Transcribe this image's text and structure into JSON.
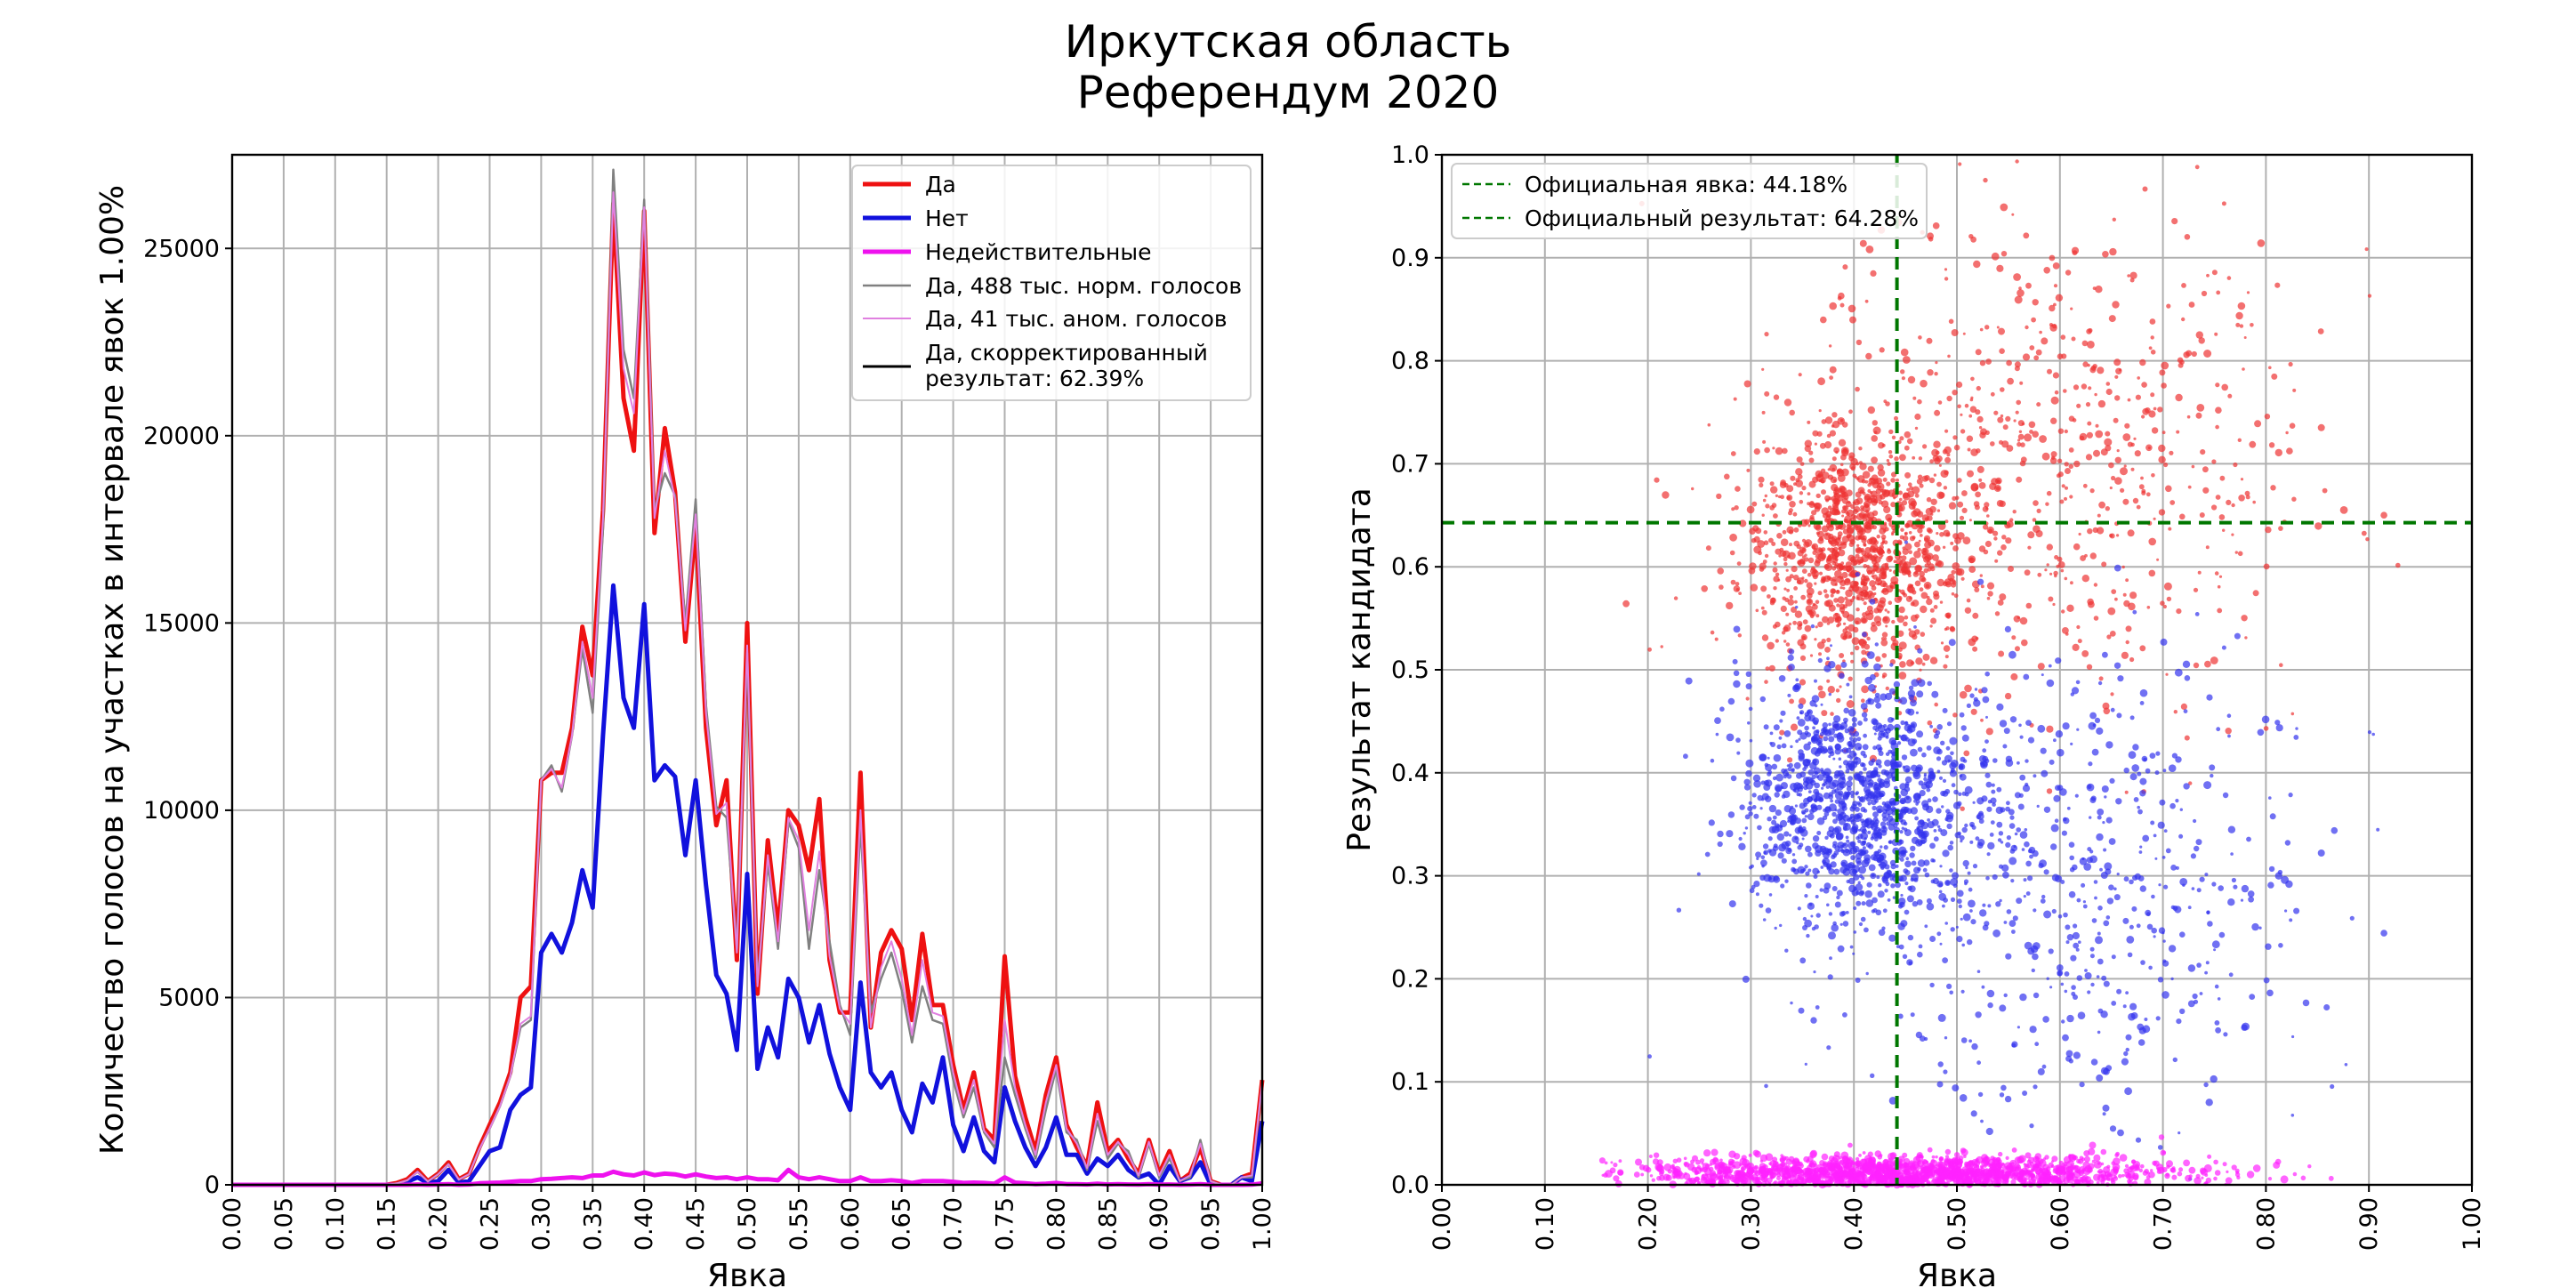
{
  "figure": {
    "title_line1": "Иркутская область",
    "title_line2": "Референдум 2020"
  },
  "chart_data": [
    {
      "type": "line",
      "xlabel": "Явка",
      "ylabel": "Количество голосов на участках в интервале явок 1.00%",
      "xlim": [
        0,
        1
      ],
      "ylim": [
        0,
        27500
      ],
      "xticks": [
        "0.00",
        "0.05",
        "0.10",
        "0.15",
        "0.20",
        "0.25",
        "0.30",
        "0.35",
        "0.40",
        "0.45",
        "0.50",
        "0.55",
        "0.60",
        "0.65",
        "0.70",
        "0.75",
        "0.80",
        "0.85",
        "0.90",
        "0.95",
        "1.00"
      ],
      "yticks": [
        "0",
        "5000",
        "10000",
        "15000",
        "20000",
        "25000"
      ],
      "grid": true,
      "legend_position": "top-right",
      "legend": [
        {
          "label": "Да",
          "color": "#ee1111"
        },
        {
          "label": "Нет",
          "color": "#1111dd"
        },
        {
          "label": "Недействительные",
          "color": "#ee11ee"
        },
        {
          "label": "Да, 488 тыс. норм. голосов",
          "color": "#808080"
        },
        {
          "label": "Да, 41 тыс. аном. голосов",
          "color": "#e080e0"
        },
        {
          "label": "Да, скорректированный",
          "label2": "результат: 62.39%",
          "color": "#000000"
        }
      ],
      "x": [
        0.0,
        0.01,
        0.02,
        0.03,
        0.04,
        0.05,
        0.06,
        0.07,
        0.08,
        0.09,
        0.1,
        0.11,
        0.12,
        0.13,
        0.14,
        0.15,
        0.16,
        0.17,
        0.18,
        0.19,
        0.2,
        0.21,
        0.22,
        0.23,
        0.24,
        0.25,
        0.26,
        0.27,
        0.28,
        0.29,
        0.3,
        0.31,
        0.32,
        0.33,
        0.34,
        0.35,
        0.36,
        0.37,
        0.38,
        0.39,
        0.4,
        0.41,
        0.42,
        0.43,
        0.44,
        0.45,
        0.46,
        0.47,
        0.48,
        0.49,
        0.5,
        0.51,
        0.52,
        0.53,
        0.54,
        0.55,
        0.56,
        0.57,
        0.58,
        0.59,
        0.6,
        0.61,
        0.62,
        0.63,
        0.64,
        0.65,
        0.66,
        0.67,
        0.68,
        0.69,
        0.7,
        0.71,
        0.72,
        0.73,
        0.74,
        0.75,
        0.76,
        0.77,
        0.78,
        0.79,
        0.8,
        0.81,
        0.82,
        0.83,
        0.84,
        0.85,
        0.86,
        0.87,
        0.88,
        0.89,
        0.9,
        0.91,
        0.92,
        0.93,
        0.94,
        0.95,
        0.96,
        0.97,
        0.98,
        0.99,
        1.0
      ],
      "series": [
        {
          "name": "Да",
          "color": "#ee1111",
          "width": 5,
          "values": [
            0,
            0,
            0,
            0,
            0,
            0,
            0,
            0,
            0,
            0,
            0,
            0,
            0,
            0,
            0,
            0,
            50,
            150,
            400,
            100,
            300,
            600,
            150,
            300,
            1000,
            1600,
            2200,
            3000,
            5000,
            5300,
            10800,
            11000,
            11000,
            12200,
            14900,
            13600,
            18000,
            26200,
            21000,
            19600,
            26000,
            17400,
            20200,
            18500,
            14500,
            17600,
            12200,
            9600,
            10800,
            6000,
            15000,
            5100,
            9200,
            6800,
            10000,
            9600,
            8400,
            10300,
            6000,
            4600,
            4600,
            11000,
            4200,
            6200,
            6800,
            6300,
            4400,
            6700,
            4800,
            4800,
            3200,
            2000,
            3000,
            1500,
            1200,
            6100,
            2900,
            1800,
            900,
            2400,
            3400,
            1600,
            1000,
            500,
            2200,
            900,
            1200,
            700,
            300,
            1200,
            300,
            900,
            100,
            300,
            1000,
            100,
            0,
            0,
            200,
            300,
            2800
          ]
        },
        {
          "name": "Нет",
          "color": "#1111dd",
          "width": 5,
          "values": [
            0,
            0,
            0,
            0,
            0,
            0,
            0,
            0,
            0,
            0,
            0,
            0,
            0,
            0,
            0,
            0,
            0,
            80,
            200,
            50,
            100,
            400,
            60,
            100,
            500,
            900,
            1000,
            2000,
            2400,
            2600,
            6200,
            6700,
            6200,
            7000,
            8400,
            7400,
            12000,
            16000,
            13000,
            12200,
            15500,
            10800,
            11200,
            10900,
            8800,
            10800,
            8000,
            5600,
            5100,
            3600,
            8300,
            3100,
            4200,
            3400,
            5500,
            5000,
            3800,
            4800,
            3500,
            2600,
            2000,
            5400,
            3000,
            2600,
            3000,
            2000,
            1400,
            2700,
            2200,
            3400,
            1600,
            900,
            1800,
            900,
            600,
            2600,
            1700,
            1000,
            500,
            1000,
            1800,
            800,
            800,
            300,
            700,
            500,
            800,
            400,
            200,
            300,
            0,
            500,
            100,
            200,
            600,
            0,
            0,
            0,
            200,
            100,
            1700
          ]
        },
        {
          "name": "Недействительные",
          "color": "#ee11ee",
          "width": 5,
          "values": [
            0,
            0,
            0,
            0,
            0,
            0,
            0,
            0,
            0,
            0,
            0,
            0,
            0,
            0,
            0,
            0,
            0,
            0,
            10,
            0,
            10,
            20,
            0,
            10,
            40,
            50,
            60,
            80,
            100,
            100,
            150,
            160,
            180,
            200,
            180,
            250,
            250,
            350,
            280,
            250,
            330,
            260,
            300,
            280,
            220,
            280,
            220,
            180,
            200,
            150,
            200,
            150,
            150,
            120,
            400,
            200,
            150,
            200,
            150,
            100,
            100,
            200,
            100,
            100,
            120,
            100,
            50,
            100,
            100,
            100,
            80,
            50,
            60,
            50,
            30,
            200,
            60,
            40,
            20,
            30,
            50,
            20,
            20,
            10,
            30,
            10,
            20,
            10,
            5,
            20,
            5,
            10,
            0,
            5,
            20,
            0,
            0,
            0,
            0,
            5,
            40
          ]
        },
        {
          "name": "Да, 488 тыс. норм. голосов",
          "color": "#808080",
          "width": 2.5,
          "values": [
            0,
            0,
            0,
            0,
            0,
            0,
            0,
            0,
            0,
            0,
            0,
            0,
            0,
            0,
            0,
            0,
            40,
            120,
            350,
            90,
            280,
            550,
            140,
            280,
            950,
            1500,
            2100,
            2900,
            4200,
            4400,
            10800,
            11200,
            10500,
            12000,
            14300,
            12600,
            17500,
            27100,
            22300,
            21000,
            26300,
            18000,
            19000,
            18400,
            15000,
            18300,
            12800,
            10100,
            9800,
            6300,
            14200,
            5400,
            8600,
            6300,
            9700,
            9000,
            6300,
            8400,
            6500,
            4800,
            4000,
            9600,
            4600,
            5500,
            6200,
            5200,
            3800,
            5300,
            4400,
            4300,
            2800,
            1800,
            2600,
            1400,
            1000,
            3400,
            2400,
            1500,
            700,
            2000,
            3100,
            1400,
            1200,
            400,
            1700,
            700,
            1100,
            900,
            200,
            1100,
            200,
            700,
            100,
            200,
            1200,
            100,
            0,
            0,
            200,
            200,
            2700
          ]
        },
        {
          "name": "Да, 41 тыс. аном. голосов",
          "color": "#e080e0",
          "width": 2,
          "values": [
            0,
            0,
            0,
            0,
            0,
            0,
            0,
            0,
            0,
            0,
            0,
            0,
            0,
            0,
            0,
            0,
            40,
            120,
            350,
            90,
            280,
            550,
            140,
            280,
            950,
            1500,
            2100,
            2900,
            4300,
            4500,
            10800,
            11100,
            10600,
            12000,
            14500,
            13000,
            17800,
            26500,
            21800,
            20600,
            26100,
            17800,
            19600,
            18300,
            14800,
            17900,
            12600,
            9900,
            10200,
            6200,
            14400,
            5300,
            8800,
            6500,
            9800,
            9200,
            6800,
            8900,
            6100,
            4700,
            4300,
            10000,
            4200,
            5800,
            6500,
            5500,
            4000,
            6000,
            4600,
            4500,
            3000,
            1900,
            2800,
            1450,
            1100,
            4400,
            2600,
            1600,
            800,
            2200,
            3200,
            1500,
            1100,
            450,
            1900,
            800,
            1150,
            800,
            250,
            1150,
            250,
            800,
            100,
            250,
            1100,
            100,
            0,
            0,
            200,
            250,
            2750
          ]
        }
      ]
    },
    {
      "type": "scatter",
      "xlabel": "Явка",
      "ylabel": "Результат кандидата",
      "xlim": [
        0,
        1
      ],
      "ylim": [
        0,
        1
      ],
      "xticks": [
        "0.00",
        "0.10",
        "0.20",
        "0.30",
        "0.40",
        "0.50",
        "0.60",
        "0.70",
        "0.80",
        "0.90",
        "1.00"
      ],
      "yticks": [
        "0.0",
        "0.1",
        "0.2",
        "0.3",
        "0.4",
        "0.5",
        "0.6",
        "0.7",
        "0.8",
        "0.9",
        "1.0"
      ],
      "grid": true,
      "legend_position": "top-left",
      "legend": [
        {
          "label": "Официальная явка: 44.18%",
          "color": "#007700"
        },
        {
          "label": "Официальный результат: 64.28%",
          "color": "#007700"
        }
      ],
      "official_turnout": 0.4418,
      "official_result": 0.6428,
      "series": [
        {
          "name": "Да",
          "color": "#ee3333",
          "clusters": [
            {
              "cx": 0.4,
              "cy": 0.615,
              "sx": 0.055,
              "sy": 0.06,
              "n": 1100
            },
            {
              "cx": 0.6,
              "cy": 0.7,
              "sx": 0.12,
              "sy": 0.12,
              "n": 650
            }
          ]
        },
        {
          "name": "Нет",
          "color": "#3333ee",
          "clusters": [
            {
              "cx": 0.4,
              "cy": 0.37,
              "sx": 0.055,
              "sy": 0.06,
              "n": 1100
            },
            {
              "cx": 0.6,
              "cy": 0.29,
              "sx": 0.12,
              "sy": 0.11,
              "n": 650
            }
          ]
        },
        {
          "name": "Недействительные",
          "color": "#ff22ff",
          "clusters": [
            {
              "cx": 0.45,
              "cy": 0.012,
              "sx": 0.13,
              "sy": 0.008,
              "n": 1600
            }
          ]
        }
      ]
    }
  ]
}
